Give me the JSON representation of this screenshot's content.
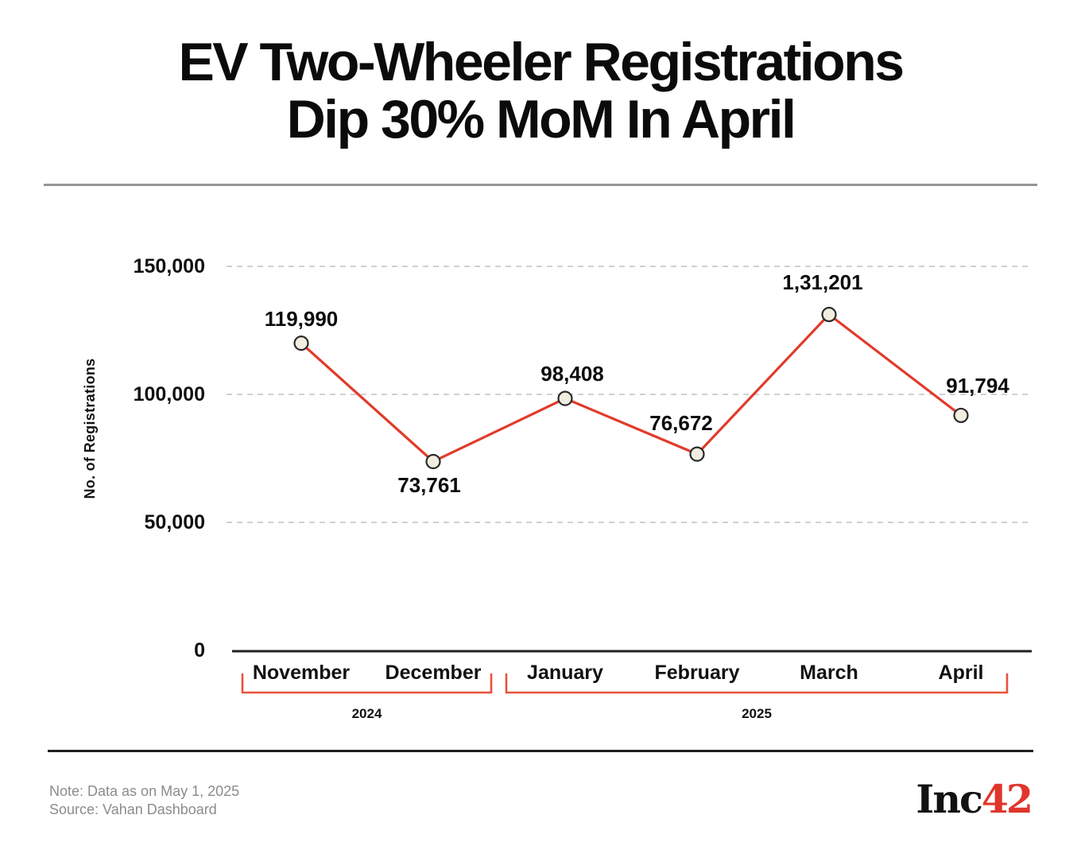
{
  "header": {
    "title_line1": "EV Two-Wheeler Registrations",
    "title_line2": "Dip 30% MoM In April"
  },
  "chart_data": {
    "type": "line",
    "title": "EV Two-Wheeler Registrations Dip 30% MoM In April",
    "ylabel": "No. of Registrations",
    "xlabel": "",
    "categories": [
      "November",
      "December",
      "January",
      "February",
      "March",
      "April"
    ],
    "values": [
      119990,
      73761,
      98408,
      76672,
      131201,
      91794
    ],
    "value_labels": [
      "119,990",
      "73,761",
      "98,408",
      "76,672",
      "1,31,201",
      "91,794"
    ],
    "y_ticks": [
      0,
      50000,
      100000,
      150000
    ],
    "y_tick_labels": [
      "0",
      "50,000",
      "100,000",
      "150,000"
    ],
    "ylim": [
      0,
      150000
    ],
    "grid": "horizontal-dashed",
    "legend": "none",
    "year_groups": [
      {
        "label": "2024",
        "first_month": "November",
        "last_month": "December"
      },
      {
        "label": "2025",
        "first_month": "January",
        "last_month": "April"
      }
    ],
    "colors": {
      "line": "#e13b2a",
      "point_fill": "#f1ede0",
      "point_stroke": "#2b2b2b",
      "bracket": "#e8523b",
      "grid": "#c2c2c2",
      "axis": "#222222"
    }
  },
  "footer": {
    "note": "Note: Data as on May 1, 2025",
    "source": "Source: Vahan Dashboard",
    "logo_black": "Inc",
    "logo_red": "42",
    "logo_red_color": "#e0352b"
  }
}
